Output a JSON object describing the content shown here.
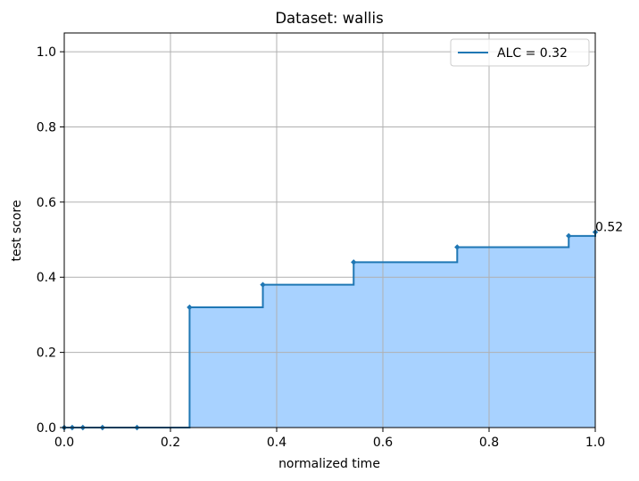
{
  "chart_data": {
    "type": "area",
    "title": "Dataset: wallis",
    "xlabel": "normalized time",
    "ylabel": "test score",
    "xlim": [
      0,
      1.0
    ],
    "ylim": [
      0,
      1.05
    ],
    "grid": true,
    "legend_position": "top-right",
    "x_ticks": [
      "0.0",
      "0.2",
      "0.4",
      "0.6",
      "0.8",
      "1.0"
    ],
    "y_ticks": [
      "0.0",
      "0.2",
      "0.4",
      "0.6",
      "0.8",
      "1.0"
    ],
    "series": [
      {
        "name": "ALC = 0.32",
        "step": "post",
        "x": [
          0.0,
          0.015,
          0.035,
          0.072,
          0.137,
          0.236,
          0.374,
          0.545,
          0.74,
          0.95,
          1.0
        ],
        "y": [
          0.0,
          0.0,
          0.0,
          0.0,
          0.0,
          0.32,
          0.38,
          0.44,
          0.48,
          0.51,
          0.52
        ]
      }
    ],
    "annotations": [
      {
        "x": 1.0,
        "y": 0.52,
        "text": "0.52"
      }
    ],
    "colors": {
      "line": "#1f77b4",
      "fill": "#a8d2ff",
      "grid": "#b0b0b0"
    }
  }
}
